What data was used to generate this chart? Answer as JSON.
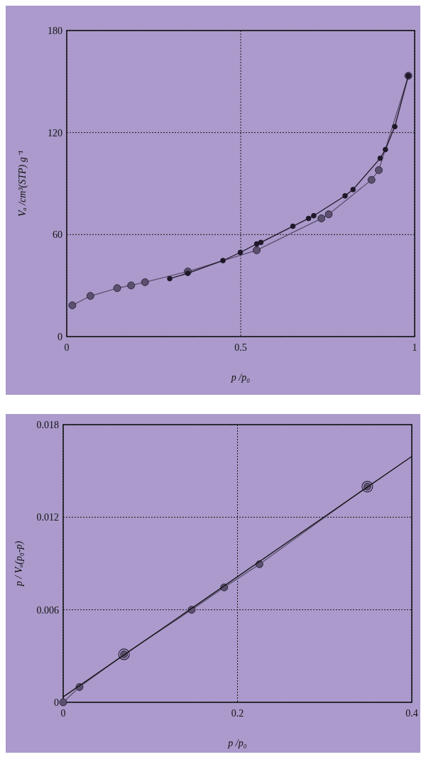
{
  "chart_data": [
    {
      "type": "line",
      "xlabel": "p /p₀",
      "ylabel": "Vₐ /cm³(STP) g⁻¹",
      "xlim": [
        0,
        1
      ],
      "ylim": [
        0,
        180
      ],
      "xticks": [
        0,
        0.5,
        1
      ],
      "yticks": [
        0,
        60,
        120,
        180
      ],
      "grid": true,
      "marker": "circle",
      "series": [
        {
          "color": "#5c5070",
          "x": [
            0.016,
            0.068,
            0.145,
            0.185,
            0.225,
            0.348,
            0.546,
            0.732,
            0.753,
            0.876,
            0.897,
            0.982
          ],
          "values": [
            18.4,
            23.9,
            28.5,
            30.1,
            32.0,
            38.3,
            50.8,
            69.5,
            71.9,
            92.2,
            97.9,
            153.4
          ]
        },
        {
          "color": "#1e1828",
          "x": [
            0.982,
            0.943,
            0.916,
            0.901,
            0.823,
            0.8,
            0.71,
            0.695,
            0.65,
            0.558,
            0.546,
            0.499,
            0.449,
            0.348,
            0.296
          ],
          "values": [
            153.4,
            123.5,
            110.0,
            104.9,
            86.5,
            82.8,
            71.1,
            69.5,
            64.9,
            55.4,
            54.5,
            49.5,
            44.7,
            37.2,
            34.1
          ]
        }
      ]
    },
    {
      "type": "line",
      "xlabel": "p /p₀",
      "ylabel": "p / Vₐ(p₀-p)",
      "xlim": [
        0,
        0.4
      ],
      "ylim": [
        0,
        0.018
      ],
      "xticks": [
        0,
        0.2,
        0.4
      ],
      "yticks": [
        0,
        0.006,
        0.012,
        0.018
      ],
      "grid": true,
      "marker": "circle",
      "series": [
        {
          "color": "#5c5070",
          "x": [
            0,
            0.0187,
            0.0698,
            0.1474,
            0.1847,
            0.2252,
            0.349
          ],
          "values": [
            0,
            0.00099,
            0.00311,
            0.006,
            0.00745,
            0.00895,
            0.01398
          ]
        },
        {
          "type": "scatter",
          "color": "#2a2238",
          "x": [
            0.0698,
            0.349
          ],
          "values": [
            0.00311,
            0.01398
          ]
        },
        {
          "type": "line",
          "marker": "none",
          "color": "#111111",
          "x": [
            0,
            0.4
          ],
          "values": [
            0.00035,
            0.01594
          ]
        }
      ]
    }
  ]
}
